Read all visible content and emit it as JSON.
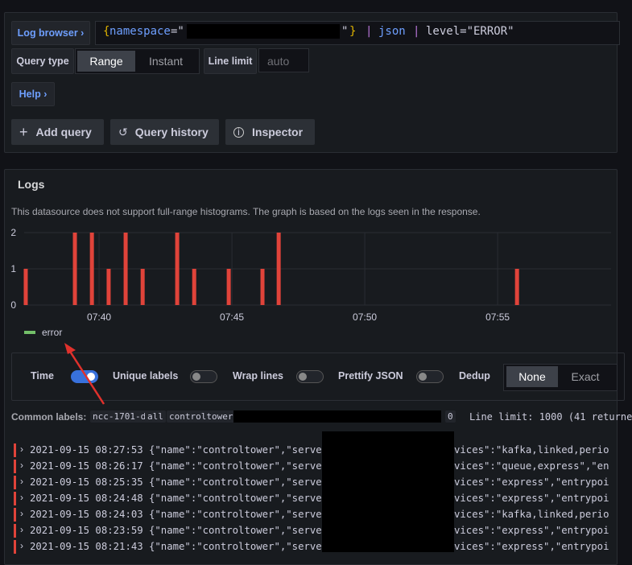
{
  "query_editor": {
    "log_browser": "Log browser",
    "query_parts": [
      "{",
      "namespace",
      "=\"",
      "\"",
      "}",
      "|",
      "json",
      "|",
      "level=\"ERROR\""
    ],
    "query_type_label": "Query type",
    "query_types": [
      "Range",
      "Instant"
    ],
    "selected_query_type": 0,
    "line_limit_label": "Line limit",
    "line_limit_placeholder": "auto",
    "help": "Help",
    "buttons": [
      "Add query",
      "Query history",
      "Inspector"
    ]
  },
  "logs_panel": {
    "title": "Logs",
    "info": "This datasource does not support full-range histograms. The graph is based on the logs seen in the response.",
    "options": [
      {
        "label": "Time",
        "on": true
      },
      {
        "label": "Unique labels",
        "on": false
      },
      {
        "label": "Wrap lines",
        "on": false
      },
      {
        "label": "Prettify JSON",
        "on": false
      }
    ],
    "dedup_label": "Dedup",
    "dedup_options": [
      "None",
      "Exact"
    ],
    "selected_dedup": 0,
    "common_labels_label": "Common labels:",
    "common_labels": [
      "ncc-1701-d",
      "all",
      "controltower",
      "0"
    ],
    "line_limit_info": "Line limit: 1000 (41 returne",
    "rows": [
      {
        "time": "2021-09-15 08:27:53",
        "start": "{\"name\":\"controltower\",\"server",
        "end": "vices\":\"kafka,linked,perio"
      },
      {
        "time": "2021-09-15 08:26:17",
        "start": "{\"name\":\"controltower\",\"server",
        "end": "vices\":\"queue,express\",\"en"
      },
      {
        "time": "2021-09-15 08:25:35",
        "start": "{\"name\":\"controltower\",\"server",
        "end": "vices\":\"express\",\"entrypoi"
      },
      {
        "time": "2021-09-15 08:24:48",
        "start": "{\"name\":\"controltower\",\"server",
        "end": "vices\":\"express\",\"entrypoi"
      },
      {
        "time": "2021-09-15 08:24:03",
        "start": "{\"name\":\"controltower\",\"server",
        "end": "vices\":\"kafka,linked,perio"
      },
      {
        "time": "2021-09-15 08:23:59",
        "start": "{\"name\":\"controltower\",\"server",
        "end": "vices\":\"express\",\"entrypoi"
      },
      {
        "time": "2021-09-15 08:21:43",
        "start": "{\"name\":\"controltower\",\"server",
        "end": "vices\":\"express\",\"entrypoi"
      }
    ]
  },
  "chart_data": {
    "type": "bar",
    "x": [
      457.24,
      459.09,
      459.73,
      460.36,
      461.0,
      461.64,
      462.94,
      463.58,
      464.88,
      466.15,
      466.76,
      475.73
    ],
    "series": [
      {
        "name": "error",
        "color": "#e0433a",
        "legend_color": "#73bf69",
        "values": [
          1,
          2,
          2,
          1,
          2,
          1,
          2,
          1,
          1,
          1,
          2,
          1
        ]
      }
    ],
    "xlim": [
      457.18,
      479.27
    ],
    "xticks": [
      {
        "value": 460,
        "label": "07:40"
      },
      {
        "value": 465,
        "label": "07:45"
      },
      {
        "value": 470,
        "label": "07:50"
      },
      {
        "value": 475,
        "label": "07:55"
      }
    ],
    "ylim": [
      0,
      2
    ],
    "yticks": [
      0,
      1,
      2
    ],
    "grid": true
  }
}
